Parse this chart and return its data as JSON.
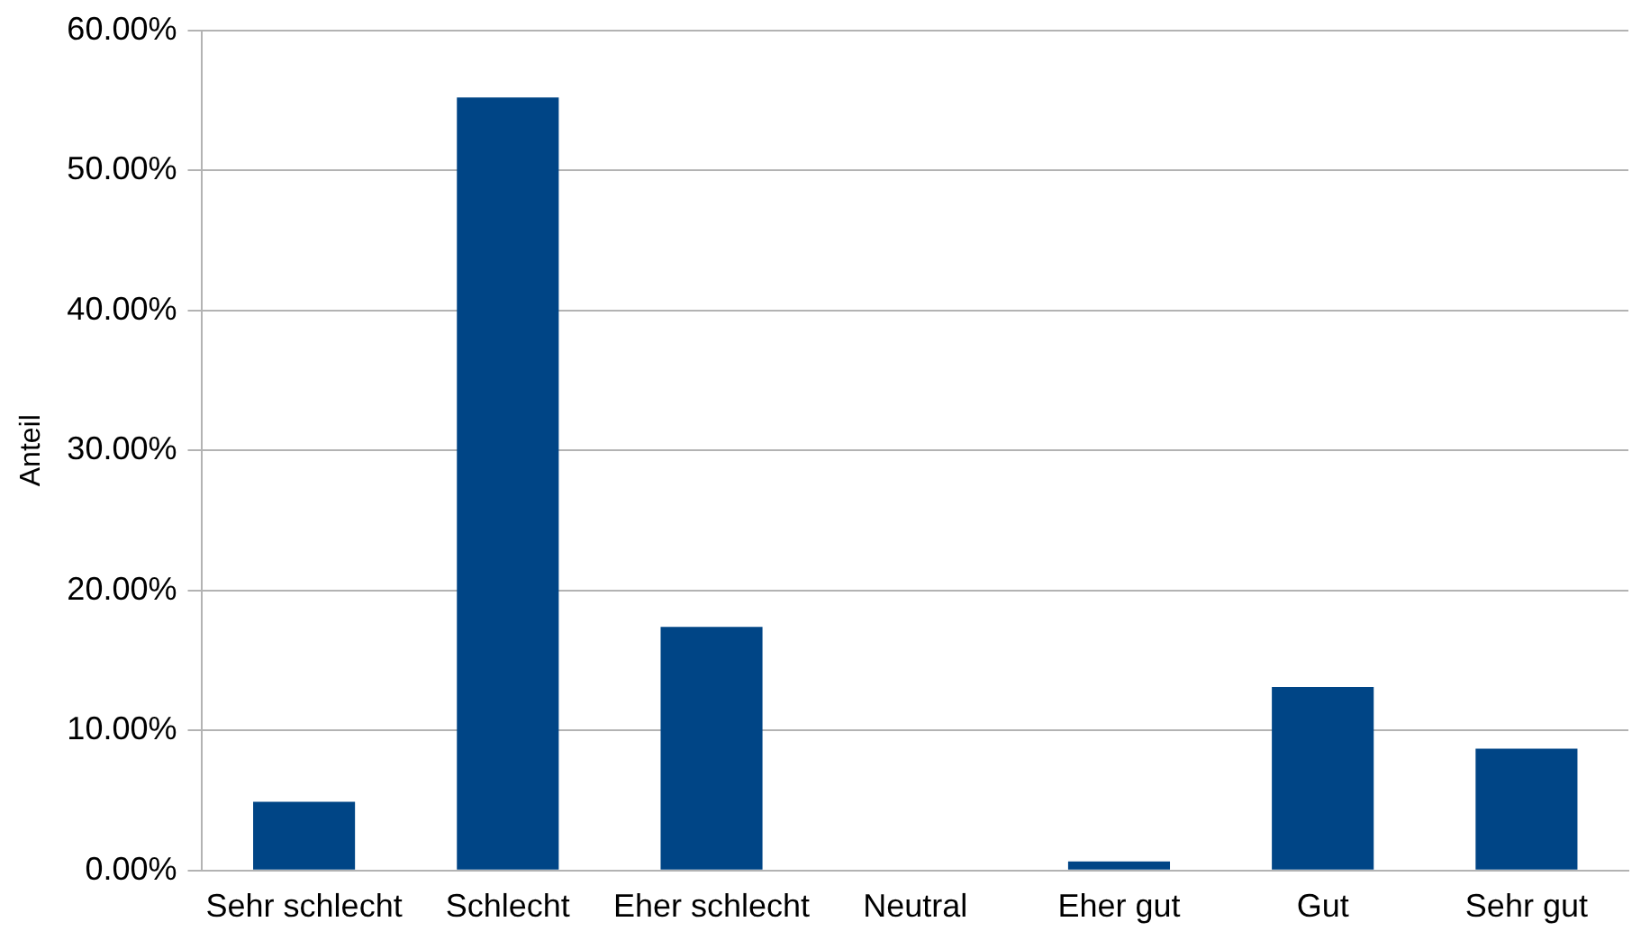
{
  "chart_data": {
    "type": "bar",
    "ylabel": "Anteil",
    "categories": [
      "Sehr schlecht",
      "Schlecht",
      "Eher schlecht",
      "Neutral",
      "Eher gut",
      "Gut",
      "Sehr gut"
    ],
    "values": [
      4.9,
      55.2,
      17.4,
      0,
      0.65,
      13.1,
      8.7
    ],
    "color": "#004586",
    "ylim": [
      0,
      60
    ],
    "yticks": [
      {
        "value": 0,
        "label": "0.00%"
      },
      {
        "value": 10,
        "label": "10.00%"
      },
      {
        "value": 20,
        "label": "20.00%"
      },
      {
        "value": 30,
        "label": "30.00%"
      },
      {
        "value": 40,
        "label": "40.00%"
      },
      {
        "value": 50,
        "label": "50.00%"
      },
      {
        "value": 60,
        "label": "60.00%"
      }
    ],
    "grid": "y",
    "legend": false
  }
}
